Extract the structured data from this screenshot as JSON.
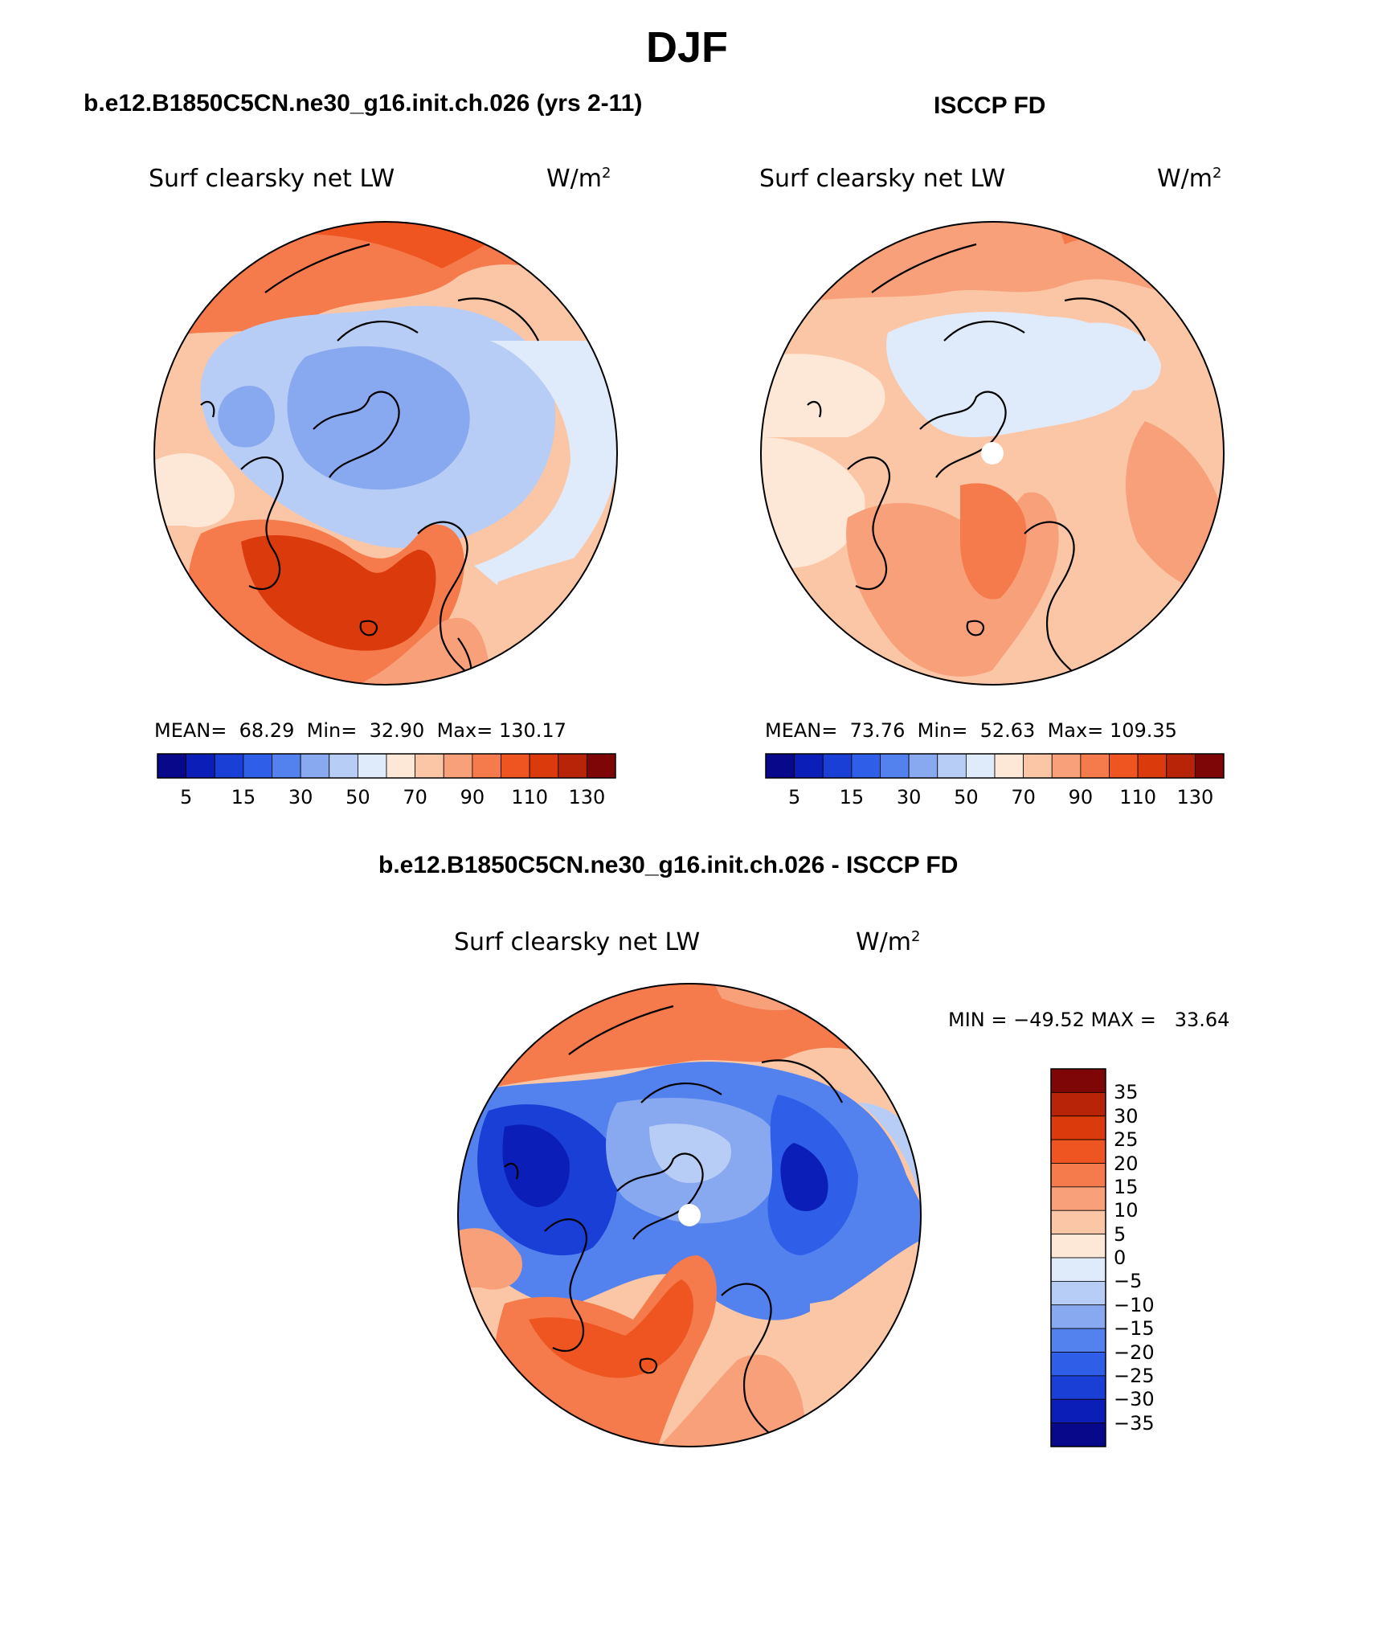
{
  "figure": {
    "title": "DJF"
  },
  "panels": [
    {
      "id": "model",
      "header": "b.e12.B1850C5CN.ne30_g16.init.ch.026 (yrs 2-11)",
      "field_label": "Surf clearsky net LW",
      "units_base": "W/m",
      "units_exp": "2",
      "mean_label": "MEAN=",
      "mean_value": "68.29",
      "min_label": "Min=",
      "min_value": "32.90",
      "max_label": "Max=",
      "max_value": "130.17",
      "colorbar_ticks": [
        "5",
        "15",
        "30",
        "50",
        "70",
        "90",
        "110",
        "130"
      ]
    },
    {
      "id": "obs",
      "header": "ISCCP FD",
      "field_label": "Surf clearsky net LW",
      "units_base": "W/m",
      "units_exp": "2",
      "mean_label": "MEAN=",
      "mean_value": "73.76",
      "min_label": "Min=",
      "min_value": "52.63",
      "max_label": "Max=",
      "max_value": "109.35",
      "colorbar_ticks": [
        "5",
        "15",
        "30",
        "50",
        "70",
        "90",
        "110",
        "130"
      ]
    },
    {
      "id": "diff",
      "header": "b.e12.B1850C5CN.ne30_g16.init.ch.026 - ISCCP FD",
      "field_label": "Surf clearsky net LW",
      "units_base": "W/m",
      "units_exp": "2",
      "minmax_text": "MIN = −49.52 MAX =   33.64",
      "colorbar_ticks": [
        "35",
        "30",
        "25",
        "20",
        "15",
        "10",
        "5",
        "0",
        "−5",
        "−10",
        "−15",
        "−20",
        "−25",
        "−30",
        "−35"
      ]
    }
  ],
  "colors": {
    "abs_palette": [
      "#08088a",
      "#0b1fb8",
      "#1a3fd6",
      "#2f5fe8",
      "#5382ee",
      "#88a8f0",
      "#b8cdf5",
      "#dfeafb",
      "#fde8d8",
      "#fbc6a6",
      "#f8a07a",
      "#f57a4c",
      "#ee5520",
      "#da3a0c",
      "#b82408",
      "#7e0606"
    ],
    "diff_palette": [
      "#08088a",
      "#0b1fb8",
      "#1a3fd6",
      "#2f5fe8",
      "#5382ee",
      "#88a8f0",
      "#b8cdf5",
      "#dfeafb",
      "#fde8d8",
      "#fbc6a6",
      "#f8a07a",
      "#f57a4c",
      "#ee5520",
      "#da3a0c",
      "#b82408",
      "#7e0606"
    ]
  }
}
